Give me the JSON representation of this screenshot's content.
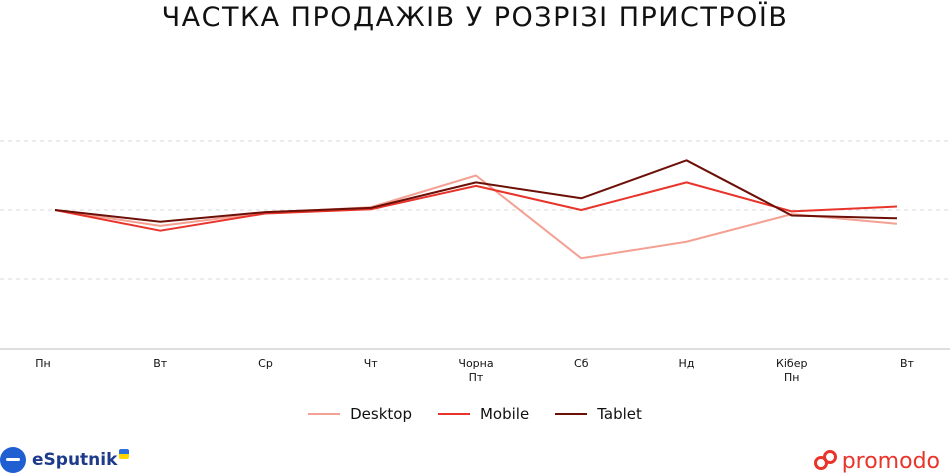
{
  "title": "ЧАСТКА ПРОДАЖІВ У РОЗРІЗІ ПРИСТРОЇВ",
  "chart_data": {
    "type": "line",
    "title": "ЧАСТКА ПРОДАЖІВ У РОЗРІЗІ ПРИСТРОЇВ",
    "xlabel": "",
    "ylabel": "",
    "categories": [
      "Пн",
      "Вт",
      "Ср",
      "Чт",
      "Чорна\nПт",
      "Сб",
      "Нд",
      "Кібер\nПн",
      "Вт"
    ],
    "ylim": [
      0,
      4
    ],
    "grid": true,
    "legend_position": "bottom",
    "series": [
      {
        "name": "Desktop",
        "color": "#f4a093",
        "values": [
          2.0,
          1.77,
          1.96,
          2.04,
          2.5,
          1.3,
          1.54,
          1.94,
          1.8
        ]
      },
      {
        "name": "Mobile",
        "color": "#e8342a",
        "values": [
          2.0,
          1.7,
          1.95,
          2.01,
          2.35,
          2.0,
          2.4,
          1.98,
          2.05
        ]
      },
      {
        "name": "Tablet",
        "color": "#6b0f07",
        "values": [
          2.0,
          1.83,
          1.97,
          2.03,
          2.4,
          2.17,
          2.72,
          1.92,
          1.88
        ]
      }
    ]
  },
  "logos": {
    "left_text": "eSputnik",
    "right_text": "promodo"
  }
}
